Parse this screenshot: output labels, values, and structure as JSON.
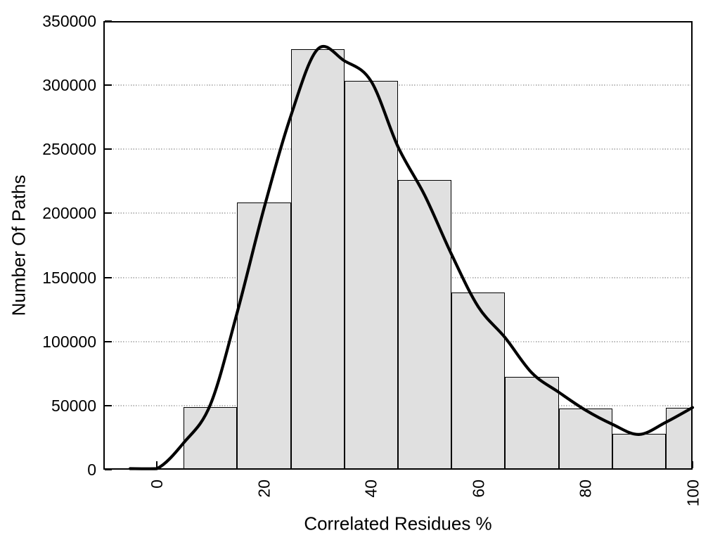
{
  "figure": {
    "background": "#ffffff"
  },
  "chart_data": {
    "type": "bar",
    "subtype": "histogram-with-smooth-curve",
    "title": "",
    "xlabel": "Correlated Residues %",
    "ylabel": "Number Of Paths",
    "xlim": [
      -10,
      100
    ],
    "ylim": [
      0,
      350000
    ],
    "x_ticks": [
      0,
      20,
      40,
      60,
      80,
      100
    ],
    "y_ticks": [
      0,
      50000,
      100000,
      150000,
      200000,
      250000,
      300000,
      350000
    ],
    "grid": {
      "horizontal": true,
      "vertical": false,
      "style": "dotted"
    },
    "legend": "none",
    "bars": [
      {
        "from": 5,
        "to": 15,
        "value": 49000
      },
      {
        "from": 15,
        "to": 25,
        "value": 208500
      },
      {
        "from": 25,
        "to": 35,
        "value": 328000
      },
      {
        "from": 35,
        "to": 45,
        "value": 303500
      },
      {
        "from": 45,
        "to": 55,
        "value": 226000
      },
      {
        "from": 55,
        "to": 65,
        "value": 138000
      },
      {
        "from": 65,
        "to": 75,
        "value": 72500
      },
      {
        "from": 75,
        "to": 85,
        "value": 47500
      },
      {
        "from": 85,
        "to": 95,
        "value": 28000
      },
      {
        "from": 95,
        "to": 100,
        "value": 48500
      }
    ],
    "curve_points": [
      [
        -5,
        0
      ],
      [
        0,
        500
      ],
      [
        5,
        21000
      ],
      [
        10,
        51000
      ],
      [
        15,
        123000
      ],
      [
        20,
        204000
      ],
      [
        25,
        276000
      ],
      [
        30,
        328000
      ],
      [
        35,
        319000
      ],
      [
        40,
        303000
      ],
      [
        45,
        252000
      ],
      [
        50,
        214000
      ],
      [
        55,
        168000
      ],
      [
        60,
        127000
      ],
      [
        65,
        103000
      ],
      [
        70,
        75500
      ],
      [
        75,
        60500
      ],
      [
        80,
        46500
      ],
      [
        85,
        35500
      ],
      [
        90,
        27500
      ],
      [
        95,
        37000
      ],
      [
        100,
        48500
      ]
    ],
    "colors": {
      "bar_fill": "#e0e0e0",
      "bar_border": "#000000",
      "curve": "#000000",
      "grid_line": "#b4b4b4",
      "axis": "#000000",
      "text": "#000000"
    }
  }
}
